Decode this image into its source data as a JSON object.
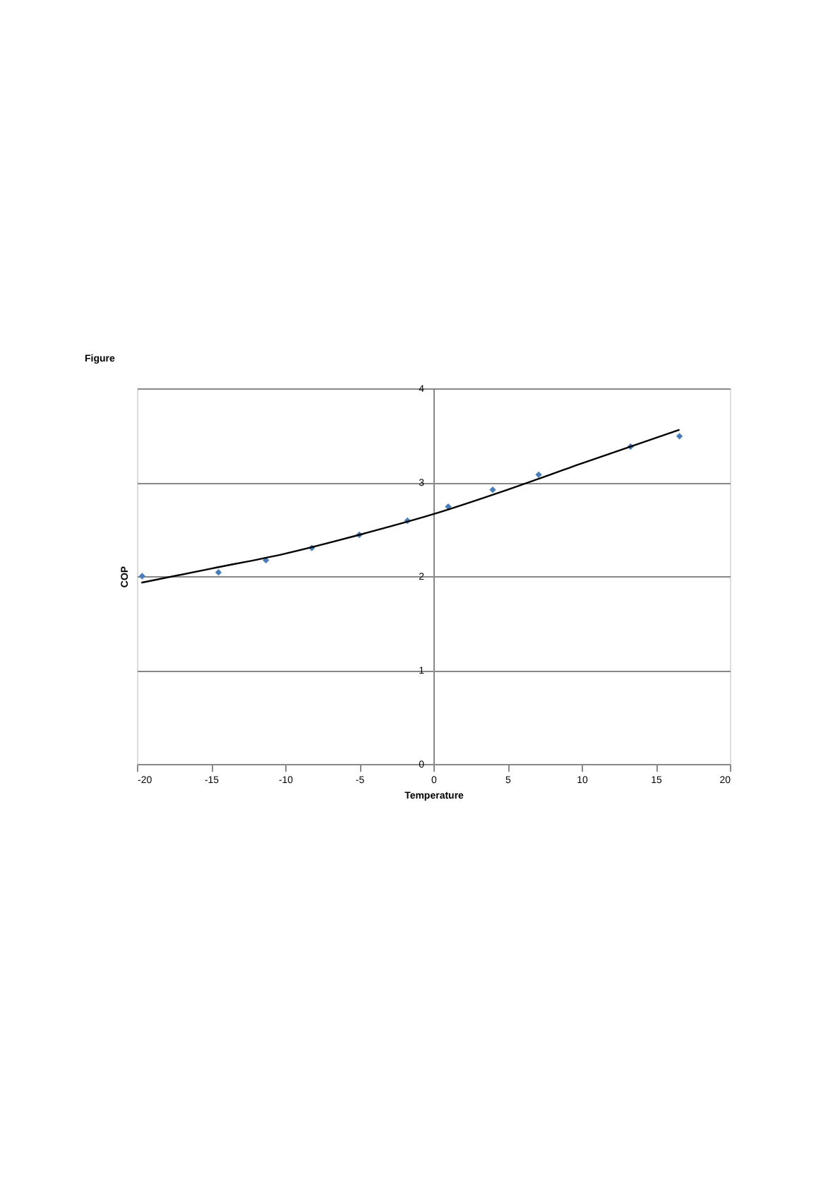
{
  "chart_data": {
    "type": "scatter",
    "title": "Figure",
    "xlabel": "Temperature",
    "ylabel": "COP",
    "xlim": [
      -20,
      20
    ],
    "xticks": [
      -20,
      -15,
      -10,
      -5,
      0,
      5,
      10,
      15,
      20
    ],
    "ylim": [
      0,
      4
    ],
    "yticks": [
      0,
      1,
      2,
      3,
      4
    ],
    "grid": "y",
    "series": [
      {
        "color": "#4a7ebb",
        "marker": "diamond",
        "x": [
          -19.65,
          -14.5,
          -11.3,
          -8.2,
          -5.0,
          -1.75,
          1.0,
          4.0,
          7.1,
          13.3,
          16.6
        ],
        "values": [
          2.0,
          2.04,
          2.17,
          2.3,
          2.44,
          2.59,
          2.74,
          2.92,
          3.08,
          3.38,
          3.49
        ]
      },
      {
        "type": "line",
        "color": "#000000",
        "marker": "none",
        "line_style": "solid",
        "x": [
          -19.7,
          -15,
          -10,
          -5,
          0,
          5,
          10,
          16.6
        ],
        "values": [
          1.93,
          2.08,
          2.24,
          2.44,
          2.66,
          2.92,
          3.2,
          3.56
        ]
      }
    ]
  }
}
